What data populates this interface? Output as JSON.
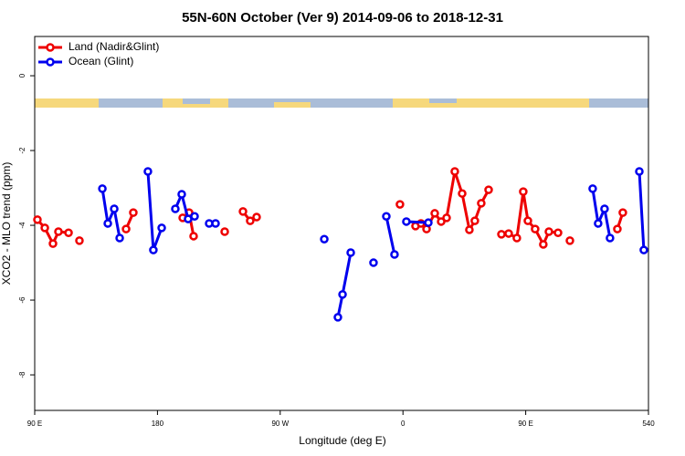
{
  "chart_data": {
    "type": "line",
    "title": "55N-60N October (Ver 9)   2014-09-06 to 2018-12-31",
    "x_label": "Longitude (deg E)",
    "y_label": "XCO2 - MLO trend (ppm)",
    "xlim": [
      90,
      540
    ],
    "xticks": [
      {
        "value": 90,
        "label": "90 E"
      },
      180,
      {
        "value": 270,
        "label": "90 W"
      },
      {
        "value": 360,
        "label": "0"
      },
      {
        "value": 450,
        "label": "90 E"
      },
      540
    ],
    "ylim": [
      -8.95,
      1.05
    ],
    "yticks": [
      0,
      -2,
      -4,
      -6,
      -8
    ],
    "legend": "topleft",
    "series": [
      {
        "name": "Land (Nadir&Glint)",
        "color": "#ee0000",
        "x": [
          92.0,
          97.4,
          103.4,
          107.4,
          114.8,
          null,
          122.8,
          null,
          157.0,
          162.3,
          null,
          198.5,
          203.2,
          206.5,
          null,
          229.3,
          null,
          242.7,
          248.0,
          252.7,
          null,
          357.8,
          null,
          369.2,
          373.2,
          377.3,
          383.3,
          388.0,
          392.0,
          398.0,
          403.4,
          408.7,
          412.7,
          417.4,
          422.8,
          null,
          432.2,
          437.5,
          443.5,
          448.2,
          451.6,
          456.9,
          462.9,
          467.0,
          473.7,
          null,
          482.4,
          null,
          517.2,
          521.2
        ],
        "values": [
          -3.85,
          -4.07,
          -4.49,
          -4.17,
          -4.2,
          null,
          -4.41,
          null,
          -4.1,
          -3.66,
          null,
          -3.8,
          -3.66,
          -4.29,
          null,
          -4.17,
          null,
          -3.63,
          -3.88,
          -3.78,
          null,
          -3.44,
          null,
          -4.02,
          -3.95,
          -4.1,
          -3.68,
          -3.9,
          -3.8,
          -2.56,
          -3.15,
          -4.12,
          -3.88,
          -3.41,
          -3.05,
          null,
          -4.24,
          -4.22,
          -4.34,
          -3.1,
          -3.88,
          -4.1,
          -4.51,
          -4.17,
          -4.2,
          null,
          -4.41,
          null,
          -4.1,
          -3.66
        ]
      },
      {
        "name": "Ocean (Glint)",
        "color": "#0000ee",
        "x": [
          139.6,
          143.6,
          148.3,
          152.3,
          null,
          173.0,
          177.0,
          183.1,
          null,
          193.1,
          197.8,
          202.5,
          207.2,
          null,
          217.9,
          222.6,
          null,
          302.3,
          null,
          312.3,
          315.7,
          321.7,
          null,
          338.4,
          null,
          347.8,
          353.8,
          null,
          362.5,
          378.6,
          null,
          499.1,
          503.1,
          507.8,
          511.8,
          null,
          533.3,
          536.6
        ],
        "values": [
          -3.02,
          -3.95,
          -3.56,
          -4.34,
          null,
          -2.56,
          -4.66,
          -4.07,
          null,
          -3.56,
          -3.17,
          -3.83,
          -3.76,
          null,
          -3.95,
          -3.95,
          null,
          -4.37,
          null,
          -6.46,
          -5.85,
          -4.73,
          null,
          -5.0,
          null,
          -3.76,
          -4.78,
          null,
          -3.9,
          -3.93,
          null,
          -3.02,
          -3.95,
          -3.56,
          -4.34,
          null,
          -2.56,
          -4.66
        ]
      }
    ]
  }
}
